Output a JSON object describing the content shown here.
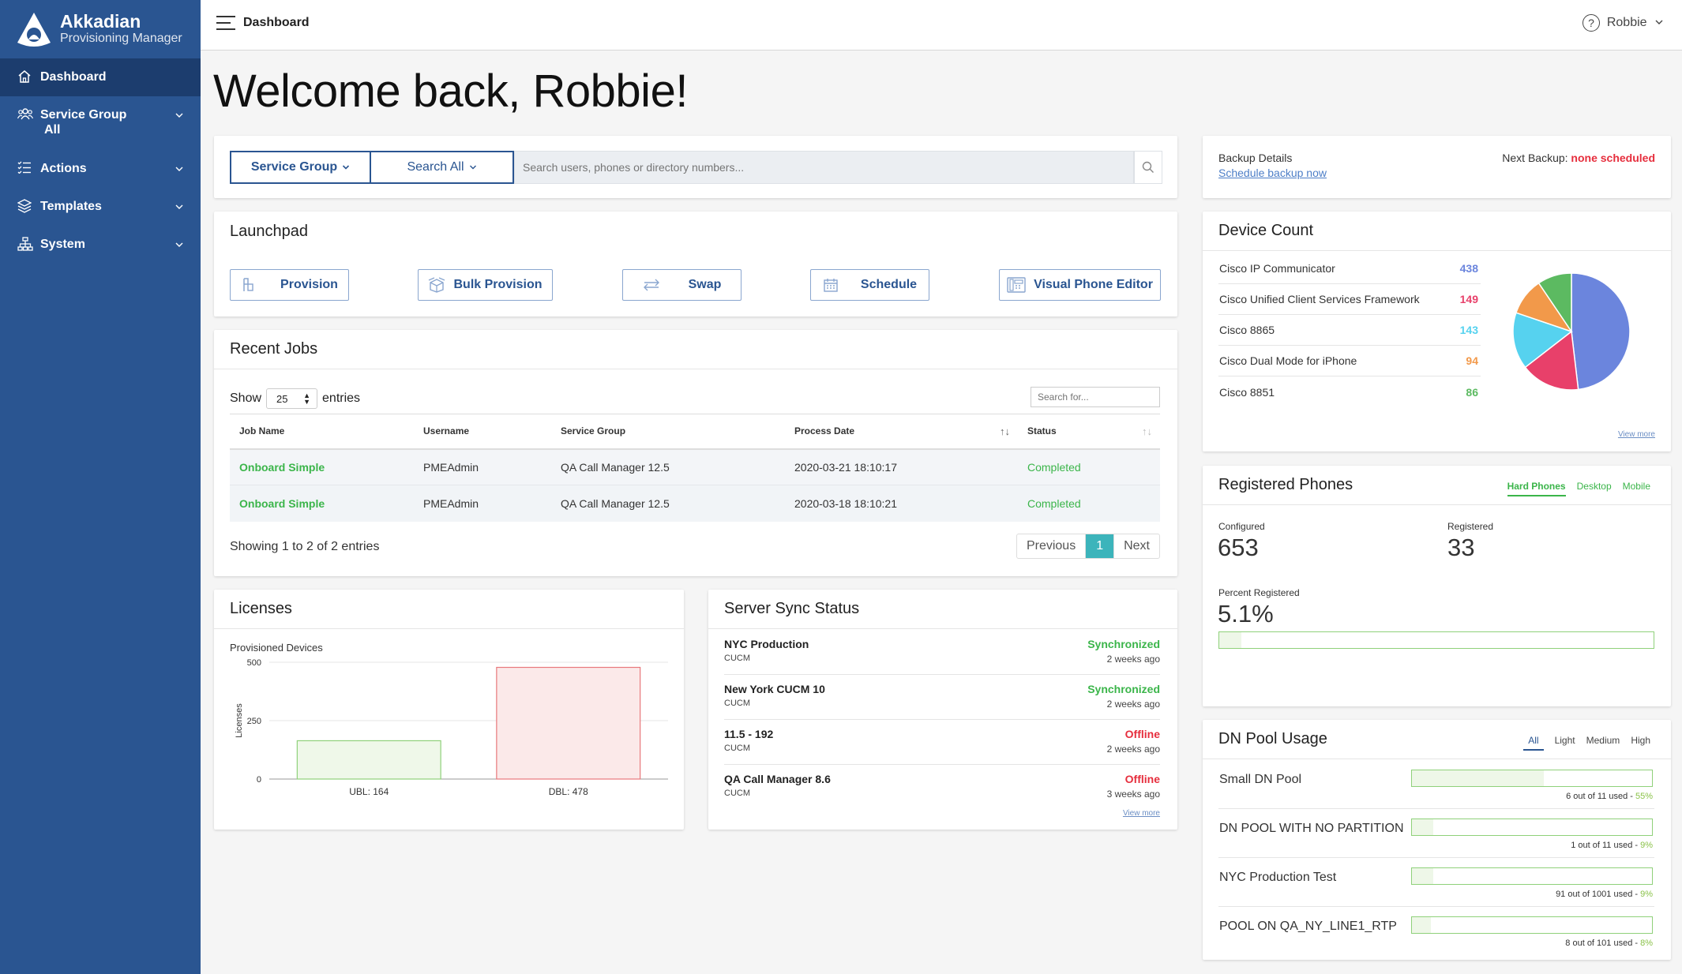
{
  "app": {
    "name": "Akkadian",
    "subtitle": "Provisioning Manager"
  },
  "sidebar": {
    "items": [
      {
        "label": "Dashboard",
        "icon": "home-icon",
        "active": true
      },
      {
        "label": "Service Group",
        "icon": "users-icon",
        "sub": "All"
      },
      {
        "label": "Actions",
        "icon": "list-icon"
      },
      {
        "label": "Templates",
        "icon": "layers-icon"
      },
      {
        "label": "System",
        "icon": "sitemap-icon"
      }
    ]
  },
  "header": {
    "title": "Dashboard",
    "user": "Robbie"
  },
  "welcome": "Welcome back, Robbie!",
  "search": {
    "service_group": "Service Group",
    "search_all": "Search All",
    "placeholder": "Search users, phones or directory numbers..."
  },
  "launchpad": {
    "title": "Launchpad",
    "buttons": [
      "Provision",
      "Bulk Provision",
      "Swap",
      "Schedule",
      "Visual Phone Editor"
    ]
  },
  "recent_jobs": {
    "title": "Recent Jobs",
    "show": "Show",
    "entries_value": "25",
    "entries": "entries",
    "search_placeholder": "Search for...",
    "columns": [
      "Job Name",
      "Username",
      "Service Group",
      "Process Date",
      "Status"
    ],
    "rows": [
      {
        "job": "Onboard Simple",
        "user": "PMEAdmin",
        "group": "QA Call Manager 12.5",
        "date": "2020-03-21 18:10:17",
        "status": "Completed"
      },
      {
        "job": "Onboard Simple",
        "user": "PMEAdmin",
        "group": "QA Call Manager 12.5",
        "date": "2020-03-18 18:10:21",
        "status": "Completed"
      }
    ],
    "showing": "Showing 1 to 2 of 2 entries",
    "prev": "Previous",
    "page": "1",
    "next": "Next"
  },
  "licenses": {
    "title": "Licenses",
    "subtitle": "Provisioned Devices"
  },
  "chart_data": {
    "type": "bar",
    "title": "Provisioned Devices",
    "categories": [
      "UBL: 164",
      "DBL: 478"
    ],
    "values": [
      164,
      478
    ],
    "ylabel": "Licenses",
    "xlabel": "",
    "ylim": [
      0,
      500
    ],
    "yticks": [
      "0",
      "250",
      "500"
    ],
    "colors": [
      "#8fd17a",
      "#e8787c"
    ],
    "fills": [
      "#eff8e9",
      "#fbe9e9"
    ],
    "grid": true
  },
  "sync": {
    "title": "Server Sync Status",
    "rows": [
      {
        "name": "NYC Production",
        "type": "CUCM",
        "status": "Synchronized",
        "time": "2 weeks ago",
        "ok": true
      },
      {
        "name": "New York CUCM 10",
        "type": "CUCM",
        "status": "Synchronized",
        "time": "2 weeks ago",
        "ok": true
      },
      {
        "name": "11.5 - 192",
        "type": "CUCM",
        "status": "Offline",
        "time": "2 weeks ago",
        "ok": false
      },
      {
        "name": "QA Call Manager 8.6",
        "type": "CUCM",
        "status": "Offline",
        "time": "3 weeks ago",
        "ok": false
      }
    ],
    "view_more": "View more"
  },
  "backup": {
    "title": "Backup Details",
    "link": "Schedule backup now",
    "next_label": "Next Backup:",
    "next_value": "none scheduled"
  },
  "device_count": {
    "title": "Device Count",
    "rows": [
      {
        "name": "Cisco IP Communicator",
        "value": 438,
        "color": "#6b85dd"
      },
      {
        "name": "Cisco Unified Client Services Framework",
        "value": 149,
        "color": "#e8406a"
      },
      {
        "name": "Cisco 8865",
        "value": 143,
        "color": "#56d2ef"
      },
      {
        "name": "Cisco Dual Mode for iPhone",
        "value": 94,
        "color": "#f2994a"
      },
      {
        "name": "Cisco 8851",
        "value": 86,
        "color": "#5cba61"
      }
    ],
    "view_more": "View more"
  },
  "registered": {
    "title": "Registered Phones",
    "tabs": [
      "Hard Phones",
      "Desktop",
      "Mobile"
    ],
    "configured_label": "Configured",
    "configured": "653",
    "registered_label": "Registered",
    "registered": "33",
    "percent_label": "Percent Registered",
    "percent": "5.1%",
    "percent_value": 5.1
  },
  "dn_pool": {
    "title": "DN Pool Usage",
    "tabs": [
      "All",
      "Light",
      "Medium",
      "High"
    ],
    "rows": [
      {
        "name": "Small DN Pool",
        "used": "6 out of 11 used - ",
        "pct": "55%",
        "value": 55
      },
      {
        "name": "DN POOL WITH NO PARTITION",
        "used": "1 out of 11 used - ",
        "pct": "9%",
        "value": 9
      },
      {
        "name": "NYC Production Test",
        "used": "91 out of 1001 used - ",
        "pct": "9%",
        "value": 9
      },
      {
        "name": "POOL ON QA_NY_LINE1_RTP",
        "used": "8 out of 101 used - ",
        "pct": "8%",
        "value": 8
      }
    ]
  }
}
